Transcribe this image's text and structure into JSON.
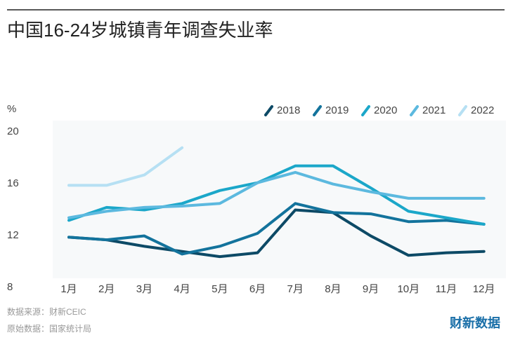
{
  "chart_data": {
    "type": "line",
    "title": "中国16-24岁城镇青年调查失业率",
    "y_unit": "%",
    "categories": [
      "1月",
      "2月",
      "3月",
      "4月",
      "5月",
      "6月",
      "7月",
      "8月",
      "9月",
      "10月",
      "11月",
      "12月"
    ],
    "series": [
      {
        "name": "2018",
        "color": "#0d4a66",
        "values": [
          11.6,
          11.4,
          10.9,
          10.5,
          10.1,
          10.4,
          13.7,
          13.5,
          11.7,
          10.2,
          10.4,
          10.5
        ]
      },
      {
        "name": "2019",
        "color": "#13739c",
        "values": [
          11.6,
          11.4,
          11.7,
          10.3,
          10.9,
          11.9,
          14.2,
          13.5,
          13.4,
          12.8,
          12.9,
          12.6
        ]
      },
      {
        "name": "2020",
        "color": "#1ba7c9",
        "values": [
          12.9,
          13.9,
          13.7,
          14.2,
          15.2,
          15.8,
          17.1,
          17.1,
          15.4,
          13.6,
          13.1,
          12.6
        ]
      },
      {
        "name": "2021",
        "color": "#5cb9df",
        "values": [
          13.1,
          13.6,
          13.9,
          14.0,
          14.2,
          15.8,
          16.6,
          15.7,
          15.1,
          14.6,
          14.6,
          14.6
        ]
      },
      {
        "name": "2022",
        "color": "#b6e0f3",
        "values": [
          15.6,
          15.6,
          16.4,
          18.5,
          null,
          null,
          null,
          null,
          null,
          null,
          null,
          null
        ]
      }
    ],
    "ylim": [
      8,
      20
    ],
    "yticks": [
      8,
      12,
      16,
      20
    ],
    "grid": false,
    "notes": [
      "数据来源：财新CEIC",
      "原始数据：国家统计局"
    ],
    "logo": "财新数据"
  }
}
